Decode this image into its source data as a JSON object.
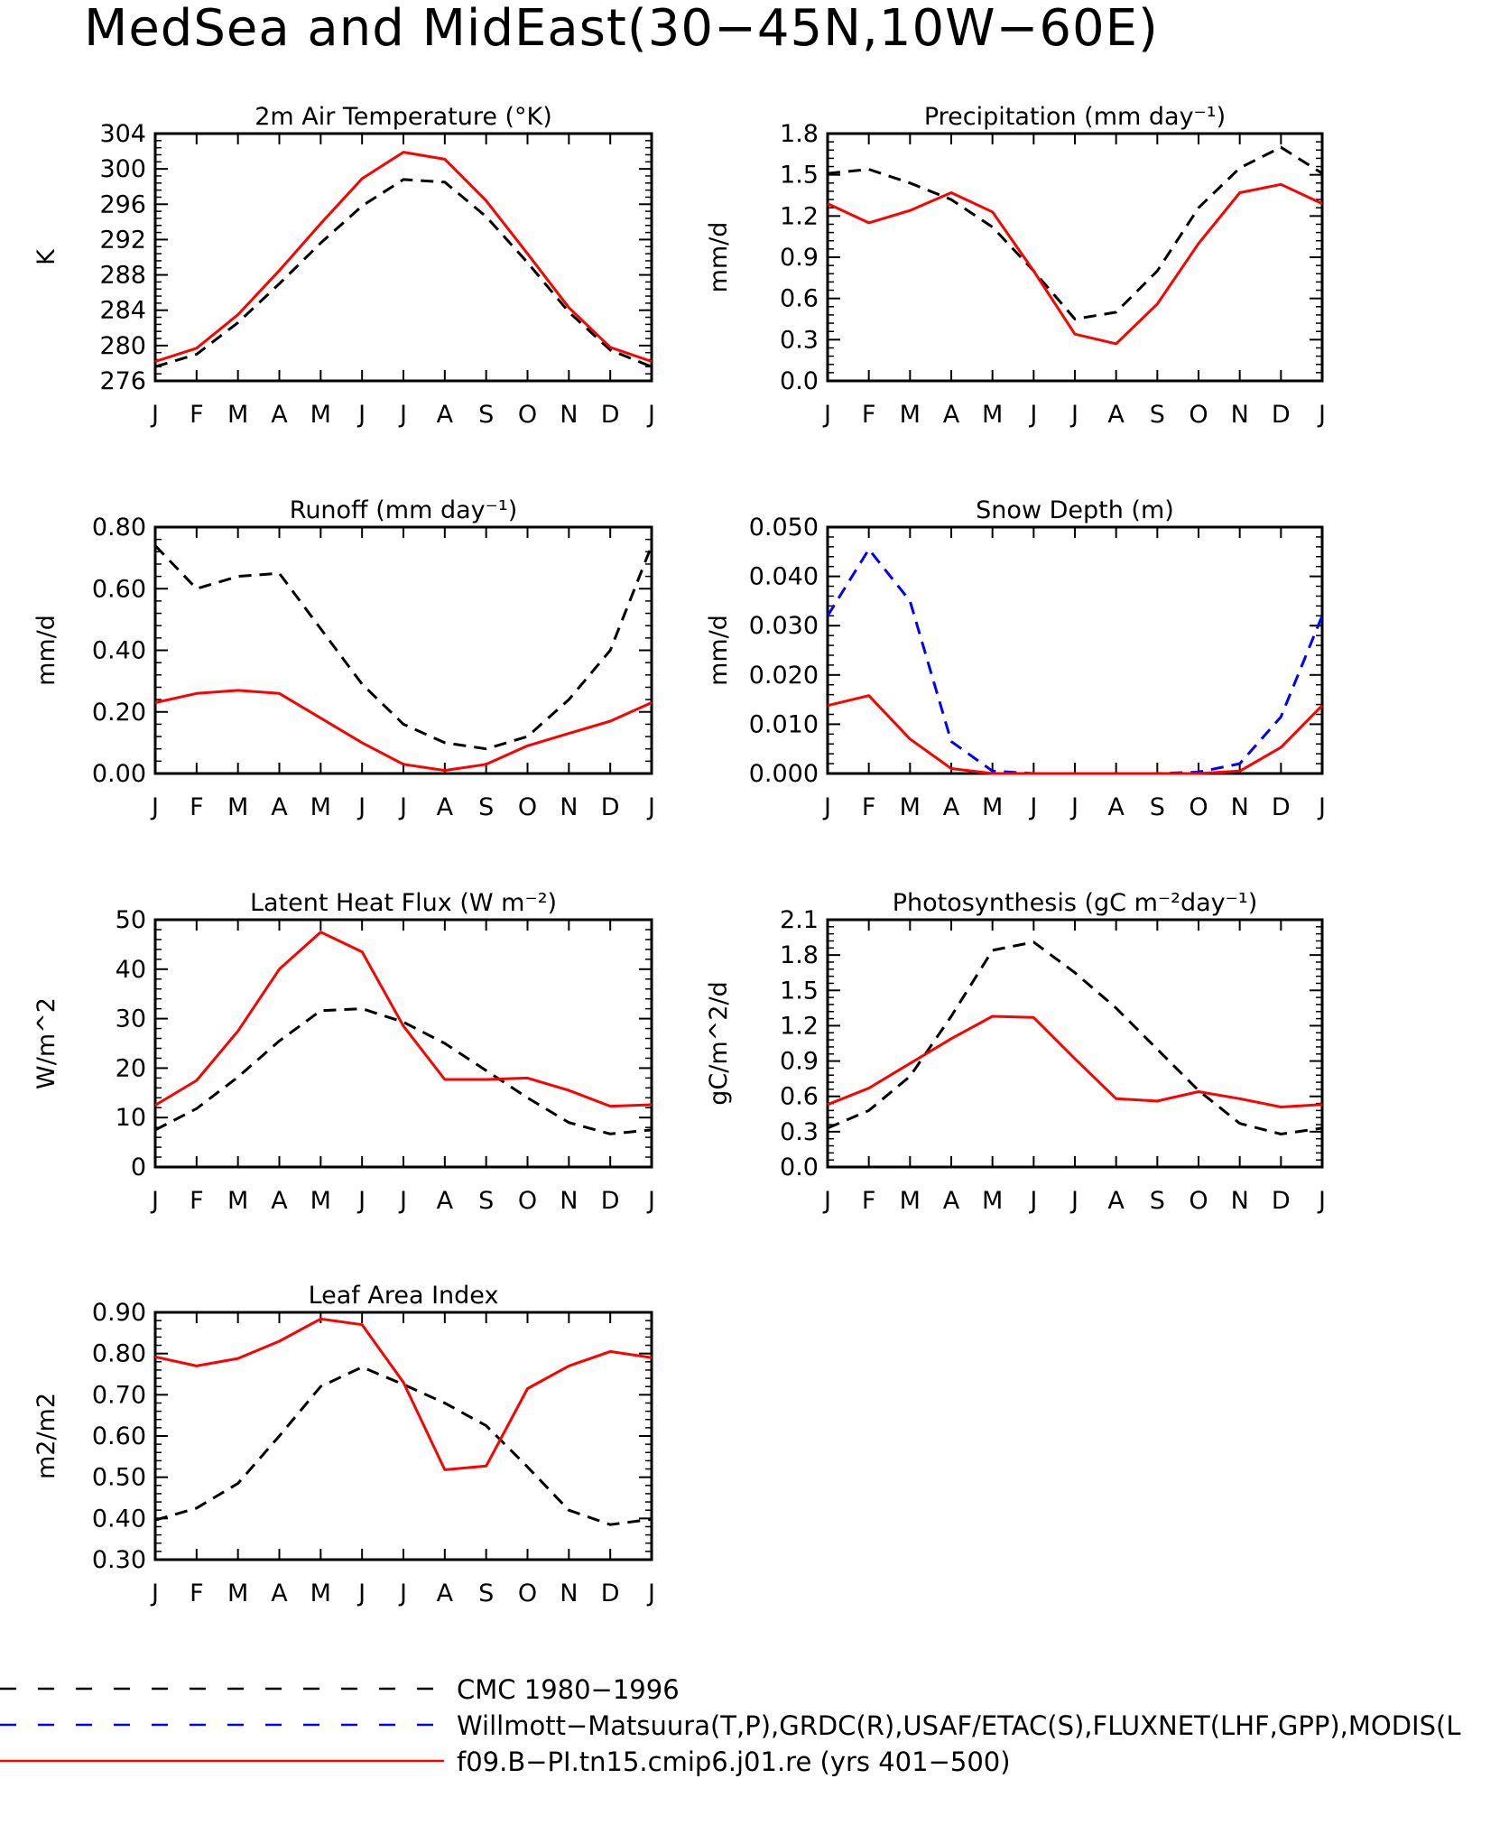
{
  "title": "MedSea and MidEast(30−45N,10W−60E)",
  "months": [
    "J",
    "F",
    "M",
    "A",
    "M",
    "J",
    "J",
    "A",
    "S",
    "O",
    "N",
    "D",
    "J"
  ],
  "legend": [
    {
      "label": "CMC 1980−1996",
      "color": "#000000",
      "style": "dashed"
    },
    {
      "label": "Willmott−Matsuura(T,P),GRDC(R),USAF/ETAC(S),FLUXNET(LHF,GPP),MODIS(L",
      "color": "#0000ff",
      "style": "dashed"
    },
    {
      "label": "f09.B−PI.tn15.cmip6.j01.re (yrs 401−500)",
      "color": "#ff0000",
      "style": "solid"
    }
  ],
  "chart_data": [
    {
      "type": "line",
      "title": "2m Air Temperature (°K)",
      "ylabel": "K",
      "ylim": [
        276,
        304
      ],
      "yticks": [
        "276",
        "280",
        "284",
        "288",
        "292",
        "296",
        "300",
        "304"
      ],
      "categories": [
        "J",
        "F",
        "M",
        "A",
        "M",
        "J",
        "J",
        "A",
        "S",
        "O",
        "N",
        "D",
        "J"
      ],
      "series": [
        {
          "name": "CMC 1980−1996",
          "color": "#000000",
          "style": "dashed",
          "values": [
            277.6,
            279.0,
            282.6,
            287.0,
            291.6,
            295.8,
            298.8,
            298.5,
            294.6,
            289.4,
            283.8,
            279.5,
            277.6
          ]
        },
        {
          "name": "f09.B−PI.tn15.cmip6.j01.re (yrs 401−500)",
          "color": "#ff0000",
          "style": "solid",
          "values": [
            278.2,
            279.7,
            283.5,
            288.5,
            293.8,
            298.9,
            301.9,
            301.1,
            296.4,
            290.4,
            284.3,
            279.8,
            278.2
          ]
        }
      ]
    },
    {
      "type": "line",
      "title": "Precipitation (mm day⁻¹)",
      "ylabel": "mm/d",
      "ylim": [
        0,
        1.8
      ],
      "yticks": [
        "0.0",
        "0.3",
        "0.6",
        "0.9",
        "1.2",
        "1.5",
        "1.8"
      ],
      "categories": [
        "J",
        "F",
        "M",
        "A",
        "M",
        "J",
        "J",
        "A",
        "S",
        "O",
        "N",
        "D",
        "J"
      ],
      "series": [
        {
          "name": "CMC 1980−1996",
          "color": "#000000",
          "style": "dashed",
          "values": [
            1.51,
            1.54,
            1.44,
            1.32,
            1.12,
            0.8,
            0.45,
            0.5,
            0.8,
            1.26,
            1.55,
            1.7,
            1.51
          ]
        },
        {
          "name": "f09.B−PI.tn15.cmip6.j01.re (yrs 401−500)",
          "color": "#ff0000",
          "style": "solid",
          "values": [
            1.29,
            1.15,
            1.24,
            1.37,
            1.23,
            0.8,
            0.34,
            0.27,
            0.56,
            1.0,
            1.37,
            1.43,
            1.29
          ]
        }
      ]
    },
    {
      "type": "line",
      "title": "Runoff (mm day⁻¹)",
      "ylabel": "mm/d",
      "ylim": [
        0,
        0.8
      ],
      "yticks": [
        "0.00",
        "0.20",
        "0.40",
        "0.60",
        "0.80"
      ],
      "categories": [
        "J",
        "F",
        "M",
        "A",
        "M",
        "J",
        "J",
        "A",
        "S",
        "O",
        "N",
        "D",
        "J"
      ],
      "series": [
        {
          "name": "CMC 1980−1996",
          "color": "#000000",
          "style": "dashed",
          "values": [
            0.74,
            0.6,
            0.64,
            0.65,
            0.47,
            0.29,
            0.16,
            0.1,
            0.08,
            0.12,
            0.24,
            0.4,
            0.74
          ]
        },
        {
          "name": "f09.B−PI.tn15.cmip6.j01.re (yrs 401−500)",
          "color": "#ff0000",
          "style": "solid",
          "values": [
            0.23,
            0.26,
            0.27,
            0.26,
            0.18,
            0.1,
            0.03,
            0.01,
            0.03,
            0.09,
            0.13,
            0.17,
            0.23
          ]
        }
      ]
    },
    {
      "type": "line",
      "title": "Snow Depth (m)",
      "ylabel": "mm/d",
      "ylim": [
        0,
        0.05
      ],
      "yticks": [
        "0.000",
        "0.010",
        "0.020",
        "0.030",
        "0.040",
        "0.050"
      ],
      "categories": [
        "J",
        "F",
        "M",
        "A",
        "M",
        "J",
        "J",
        "A",
        "S",
        "O",
        "N",
        "D",
        "J"
      ],
      "series": [
        {
          "name": "CMC 1980−1996",
          "color": "#000000",
          "style": "dashed",
          "values": [
            0,
            0,
            0,
            0,
            0,
            0,
            0,
            0,
            0,
            0,
            0,
            0,
            0
          ]
        },
        {
          "name": "Willmott−Matsuura(T,P),GRDC(R),USAF/ETAC(S),FLUXNET(LHF,GPP),MODIS(L",
          "color": "#0000ff",
          "style": "dashed",
          "values": [
            0.032,
            0.0455,
            0.035,
            0.0065,
            0.0005,
            0,
            0,
            0,
            0,
            0.0003,
            0.002,
            0.0115,
            0.032
          ]
        },
        {
          "name": "f09.B−PI.tn15.cmip6.j01.re (yrs 401−500)",
          "color": "#ff0000",
          "style": "solid",
          "values": [
            0.0138,
            0.0158,
            0.007,
            0.001,
            0,
            0,
            0,
            0,
            0,
            0,
            0.0005,
            0.0053,
            0.0138
          ]
        }
      ]
    },
    {
      "type": "line",
      "title": "Latent Heat Flux (W m⁻²)",
      "ylabel": "W/m^2",
      "ylim": [
        0,
        50
      ],
      "yticks": [
        "0",
        "10",
        "20",
        "30",
        "40",
        "50"
      ],
      "categories": [
        "J",
        "F",
        "M",
        "A",
        "M",
        "J",
        "J",
        "A",
        "S",
        "O",
        "N",
        "D",
        "J"
      ],
      "series": [
        {
          "name": "CMC 1980−1996",
          "color": "#000000",
          "style": "dashed",
          "values": [
            7.5,
            11.8,
            18.2,
            25.5,
            31.6,
            32.0,
            29.3,
            25.0,
            19.5,
            14.0,
            9.0,
            6.7,
            7.5
          ]
        },
        {
          "name": "f09.B−PI.tn15.cmip6.j01.re (yrs 401−500)",
          "color": "#ff0000",
          "style": "solid",
          "values": [
            12.5,
            17.5,
            27.5,
            40.0,
            47.5,
            43.5,
            28.5,
            17.7,
            17.7,
            18.0,
            15.5,
            12.3,
            12.6
          ]
        }
      ]
    },
    {
      "type": "line",
      "title": "Photosynthesis (gC m⁻²day⁻¹)",
      "ylabel": "gC/m^2/d",
      "ylim": [
        0,
        2.1
      ],
      "yticks": [
        "0.0",
        "0.3",
        "0.6",
        "0.9",
        "1.2",
        "1.5",
        "1.8",
        "2.1"
      ],
      "categories": [
        "J",
        "F",
        "M",
        "A",
        "M",
        "J",
        "J",
        "A",
        "S",
        "O",
        "N",
        "D",
        "J"
      ],
      "series": [
        {
          "name": "CMC 1980−1996",
          "color": "#000000",
          "style": "dashed",
          "values": [
            0.33,
            0.48,
            0.77,
            1.28,
            1.84,
            1.91,
            1.65,
            1.35,
            1.0,
            0.65,
            0.37,
            0.28,
            0.33
          ]
        },
        {
          "name": "f09.B−PI.tn15.cmip6.j01.re (yrs 401−500)",
          "color": "#ff0000",
          "style": "solid",
          "values": [
            0.53,
            0.67,
            0.88,
            1.09,
            1.28,
            1.27,
            0.92,
            0.58,
            0.56,
            0.64,
            0.58,
            0.51,
            0.53
          ]
        }
      ]
    },
    {
      "type": "line",
      "title": "Leaf Area Index",
      "ylabel": "m2/m2",
      "ylim": [
        0.3,
        0.9
      ],
      "yticks": [
        "0.30",
        "0.40",
        "0.50",
        "0.60",
        "0.70",
        "0.80",
        "0.90"
      ],
      "categories": [
        "J",
        "F",
        "M",
        "A",
        "M",
        "J",
        "J",
        "A",
        "S",
        "O",
        "N",
        "D",
        "J"
      ],
      "series": [
        {
          "name": "CMC 1980−1996",
          "color": "#000000",
          "style": "dashed",
          "values": [
            0.396,
            0.425,
            0.485,
            0.6,
            0.72,
            0.767,
            0.725,
            0.68,
            0.625,
            0.525,
            0.42,
            0.385,
            0.398
          ]
        },
        {
          "name": "f09.B−PI.tn15.cmip6.j01.re (yrs 401−500)",
          "color": "#ff0000",
          "style": "solid",
          "values": [
            0.792,
            0.77,
            0.788,
            0.83,
            0.884,
            0.87,
            0.73,
            0.518,
            0.527,
            0.715,
            0.77,
            0.805,
            0.79
          ]
        }
      ]
    }
  ]
}
